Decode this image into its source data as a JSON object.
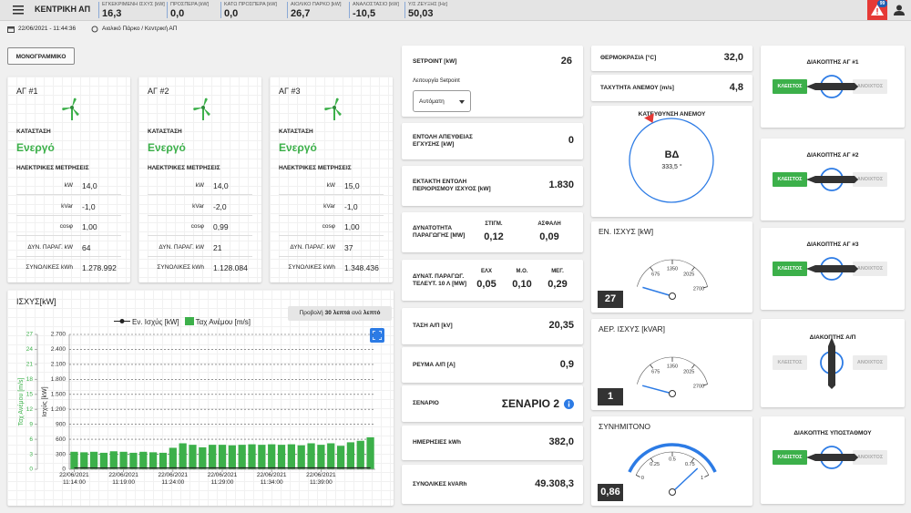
{
  "topbar": {
    "title": "ΚΕΝΤΡΙΚΗ ΑΠ",
    "metrics": [
      {
        "label": "ΕΓΚΕΚΡΙΜΕΝΗ ΙΣΧΥΣ [kW]",
        "value": "16,3"
      },
      {
        "label": "ΠΡΟΣΠΕΡΑ [kW]",
        "value": "0,0"
      },
      {
        "label": "ΚΑΤΩ ΠΡΟΣΠΕΡΑ [kW]",
        "value": "0,0"
      },
      {
        "label": "ΑΙΟΛΙΚΟ ΠΑΡΚΟ [kW]",
        "value": "26,7"
      },
      {
        "label": "ΑΝΑΛΟΣΤΑΣΙΟ [kW]",
        "value": "-10,5"
      },
      {
        "label": "Υ/Σ ΖΕΥΞΗΣ  [Hz]",
        "value": "50,03"
      }
    ],
    "alarm_count": "99"
  },
  "info": {
    "datetime": "22/06/2021 - 11:44:36",
    "location": "Αιολικό Πάρκο / Κεντρική ΑΠ"
  },
  "button": "ΜΟΝΟΓΡΑΜΜΙΚΟ",
  "turbines": [
    {
      "title": "ΑΓ #1",
      "status_label": "ΚΑΤΑΣΤΑΣΗ",
      "status": "Ενεργό",
      "section": "ΗΛΕΚΤΡΙΚΕΣ ΜΕΤΡΗΣΕΙΣ",
      "rows": [
        [
          "kW",
          "14,0"
        ],
        [
          "kVar",
          "-1,0"
        ],
        [
          "cosφ",
          "1,00"
        ],
        [
          "ΔΥΝ. ΠΑΡΑΓ. kW",
          "64"
        ],
        [
          "ΣΥΝΟΛΙΚΕΣ kWh",
          "1.278.992"
        ]
      ]
    },
    {
      "title": "ΑΓ #2",
      "status_label": "ΚΑΤΑΣΤΑΣΗ",
      "status": "Ενεργό",
      "section": "ΗΛΕΚΤΡΙΚΕΣ ΜΕΤΡΗΣΕΙΣ",
      "rows": [
        [
          "kW",
          "14,0"
        ],
        [
          "kVar",
          "-2,0"
        ],
        [
          "cosφ",
          "0,99"
        ],
        [
          "ΔΥΝ. ΠΑΡΑΓ. kW",
          "21"
        ],
        [
          "ΣΥΝΟΛΙΚΕΣ kWh",
          "1.128.084"
        ]
      ]
    },
    {
      "title": "ΑΓ #3",
      "status_label": "ΚΑΤΑΣΤΑΣΗ",
      "status": "Ενεργό",
      "section": "ΗΛΕΚΤΡΙΚΕΣ ΜΕΤΡΗΣΕΙΣ",
      "rows": [
        [
          "kW",
          "15,0"
        ],
        [
          "kVar",
          "-1,0"
        ],
        [
          "cosφ",
          "1,00"
        ],
        [
          "ΔΥΝ. ΠΑΡΑΓ. kW",
          "37"
        ],
        [
          "ΣΥΝΟΛΙΚΕΣ kWh",
          "1.348.436"
        ]
      ]
    }
  ],
  "chart_card": {
    "title": "ΙΣΧΥΣ[kW]",
    "view_button": [
      {
        "text": "Προβολή",
        "bold": false
      },
      {
        "text": "30 λεπτά",
        "bold": true
      },
      {
        "text": "ανά",
        "bold": false
      },
      {
        "text": "λεπτό",
        "bold": true
      }
    ]
  },
  "chart_data": {
    "type": "bar",
    "categories": [
      "22/06/2021 11:14:00",
      null,
      null,
      null,
      null,
      "22/06/2021 11:19:00",
      null,
      null,
      null,
      null,
      "22/06/2021 11:24:00",
      null,
      null,
      null,
      null,
      "22/06/2021 11:29:00",
      null,
      null,
      null,
      null,
      "22/06/2021 11:34:00",
      null,
      null,
      null,
      null,
      "22/06/2021 11:39:00",
      null,
      null,
      null,
      null,
      null
    ],
    "series": [
      {
        "name": "Εν. Ισχύς [kW]",
        "type": "line",
        "color": "#222222",
        "axis": "y2",
        "values": [
          26,
          27,
          26,
          25,
          26,
          27,
          26,
          26,
          25,
          26,
          27,
          28,
          27,
          26,
          27,
          27,
          26,
          27,
          27,
          26,
          27,
          27,
          26,
          27,
          28,
          27,
          27,
          26,
          27,
          28,
          27
        ]
      },
      {
        "name": "Ταχ Ανέμου [m/s]",
        "type": "bar",
        "color": "#3cb04a",
        "axis": "y",
        "values": [
          3.5,
          3.4,
          3.5,
          3.3,
          3.6,
          3.5,
          3.3,
          3.5,
          3.4,
          3.3,
          4.3,
          5.2,
          4.9,
          4.4,
          4.9,
          4.9,
          4.8,
          4.9,
          5.0,
          4.9,
          5.0,
          4.9,
          5.0,
          4.8,
          5.2,
          4.9,
          5.2,
          4.7,
          5.4,
          5.7,
          6.4
        ]
      }
    ],
    "ylabel": "Ταχ Ανέμου [m/s]",
    "y2label": "Ισχύς [kW]",
    "ylim": [
      0,
      27
    ],
    "yticks": [
      0,
      3,
      6,
      9,
      12,
      15,
      18,
      21,
      24,
      27
    ],
    "y2lim": [
      0,
      2700
    ],
    "y2ticks": [
      0,
      300,
      600,
      900,
      {
        "value": 1200,
        "label": "1.200"
      },
      {
        "value": 1500,
        "label": "1.500"
      },
      {
        "value": 1800,
        "label": "1.800"
      },
      {
        "value": 2100,
        "label": "2.100"
      },
      {
        "value": 2400,
        "label": "2.400"
      },
      {
        "value": 2700,
        "label": "2.700"
      }
    ],
    "grid": true,
    "legend": "top"
  },
  "setpoint": {
    "label": "SETPOINT [kW]",
    "value": "26",
    "mode_label": "Λειτουργία Setpoint",
    "mode": "Αυτόματη"
  },
  "middle_cards": [
    {
      "label": "ΕΝΤΟΛΗ ΑΠΕΥΘΕΙΑΣ ΕΓΧΥΣΗΣ [kW]",
      "value": "0"
    },
    {
      "label": "ΕΚΤΑΚΤΗ ΕΝΤΟΛΗ ΠΕΡΙΟΡΙΣΜΟΥ ΙΣΧΥΟΣ [kW]",
      "value": "1.830"
    },
    {
      "label": "ΔΥΝΑΤΟΤΗΤΑ ΠΑΡΑΓΩΓΗΣ [MW]",
      "cols": [
        [
          "ΣΤΙΓΜ.",
          "0,12"
        ],
        [
          "ΑΣΦΑΛΗ",
          "0,09"
        ]
      ]
    },
    {
      "label": "ΔΥΝΑΤ. ΠΑΡΑΓΩΓ. ΤΕΛΕΥΤ. 10 Λ [MW]",
      "cols": [
        [
          "ΕΛΧ",
          "0,05"
        ],
        [
          "Μ.Ο.",
          "0,10"
        ],
        [
          "ΜΕΓ.",
          "0,29"
        ]
      ]
    },
    {
      "label": "ΤΑΣΗ Α/Π [kV]",
      "value": "20,35"
    },
    {
      "label": "ΡΕΥΜΑ Α/Π [A]",
      "value": "0,9"
    },
    {
      "label": "ΣΕΝΑΡΙΟ",
      "value": "ΣΕΝΑΡΙΟ 2",
      "info": true
    },
    {
      "label": "ΗΜΕΡΗΣΙΕΣ kWh",
      "value": "382,0"
    },
    {
      "label": "ΣΥΝΟΛΙΚΕΣ kVARh",
      "value": "49.308,3"
    }
  ],
  "weather": [
    {
      "label": "ΘΕΡΜΟΚΡΑΣΙΑ [°C]",
      "value": "32,0"
    },
    {
      "label": "ΤΑΧΥΤΗΤΑ ΑΝΕΜΟΥ [m/s]",
      "value": "4,8"
    }
  ],
  "wind_direction": {
    "title": "ΚΑΤΕΥΘΥΝΣΗ ΑΝΕΜΟΥ",
    "cardinal": "ΒΔ",
    "value": {
      "value": 333.5,
      "label": "333,5 °"
    }
  },
  "gauges": [
    {
      "title": "ΕΝ. ΙΣΧΥΣ [kW]",
      "value": 27,
      "range": [
        0,
        2700
      ],
      "ticks": [
        675,
        1350,
        2025,
        2700
      ]
    },
    {
      "title": "ΑΕΡ. ΙΣΧΥΣ [kVAR]",
      "value": 1,
      "range": [
        0,
        2700
      ],
      "ticks": [
        675,
        1350,
        2025,
        2700
      ]
    },
    {
      "title": "ΣΥΝΗΜΙΤΟΝΟ",
      "value": {
        "value": 0.86,
        "label": "0,86"
      },
      "range": [
        0,
        1
      ],
      "ticks": [
        0,
        0.25,
        0.5,
        0.75,
        1
      ]
    }
  ],
  "switches": [
    {
      "title": "ΔΙΑΚΟΠΤΗΣ ΑΓ #1",
      "closed_label": "ΚΛΕΙΣΤΟΣ",
      "open_label": "ΑΝΟΙΧΤΟΣ",
      "closed": true
    },
    {
      "title": "ΔΙΑΚΟΠΤΗΣ ΑΓ #2",
      "closed_label": "ΚΛΕΙΣΤΟΣ",
      "open_label": "ΑΝΟΙΧΤΟΣ",
      "closed": true
    },
    {
      "title": "ΔΙΑΚΟΠΤΗΣ ΑΓ #3",
      "closed_label": "ΚΛΕΙΣΤΟΣ",
      "open_label": "ΑΝΟΙΧΤΟΣ",
      "closed": true
    },
    {
      "title": "ΔΙΑΚΟΠΤΗΣ Α/Π",
      "closed_label": "ΚΛΕΙΣΤΟΣ",
      "open_label": "ΑΝΟΙΧΤΟΣ",
      "closed": null
    },
    {
      "title": "ΔΙΑΚΟΠΤΗΣ ΥΠΟΣΤΑΘΜΟΥ",
      "closed_label": "ΚΛΕΙΣΤΟΣ",
      "open_label": "ΑΝΟΙΧΤΟΣ",
      "closed": true
    }
  ]
}
